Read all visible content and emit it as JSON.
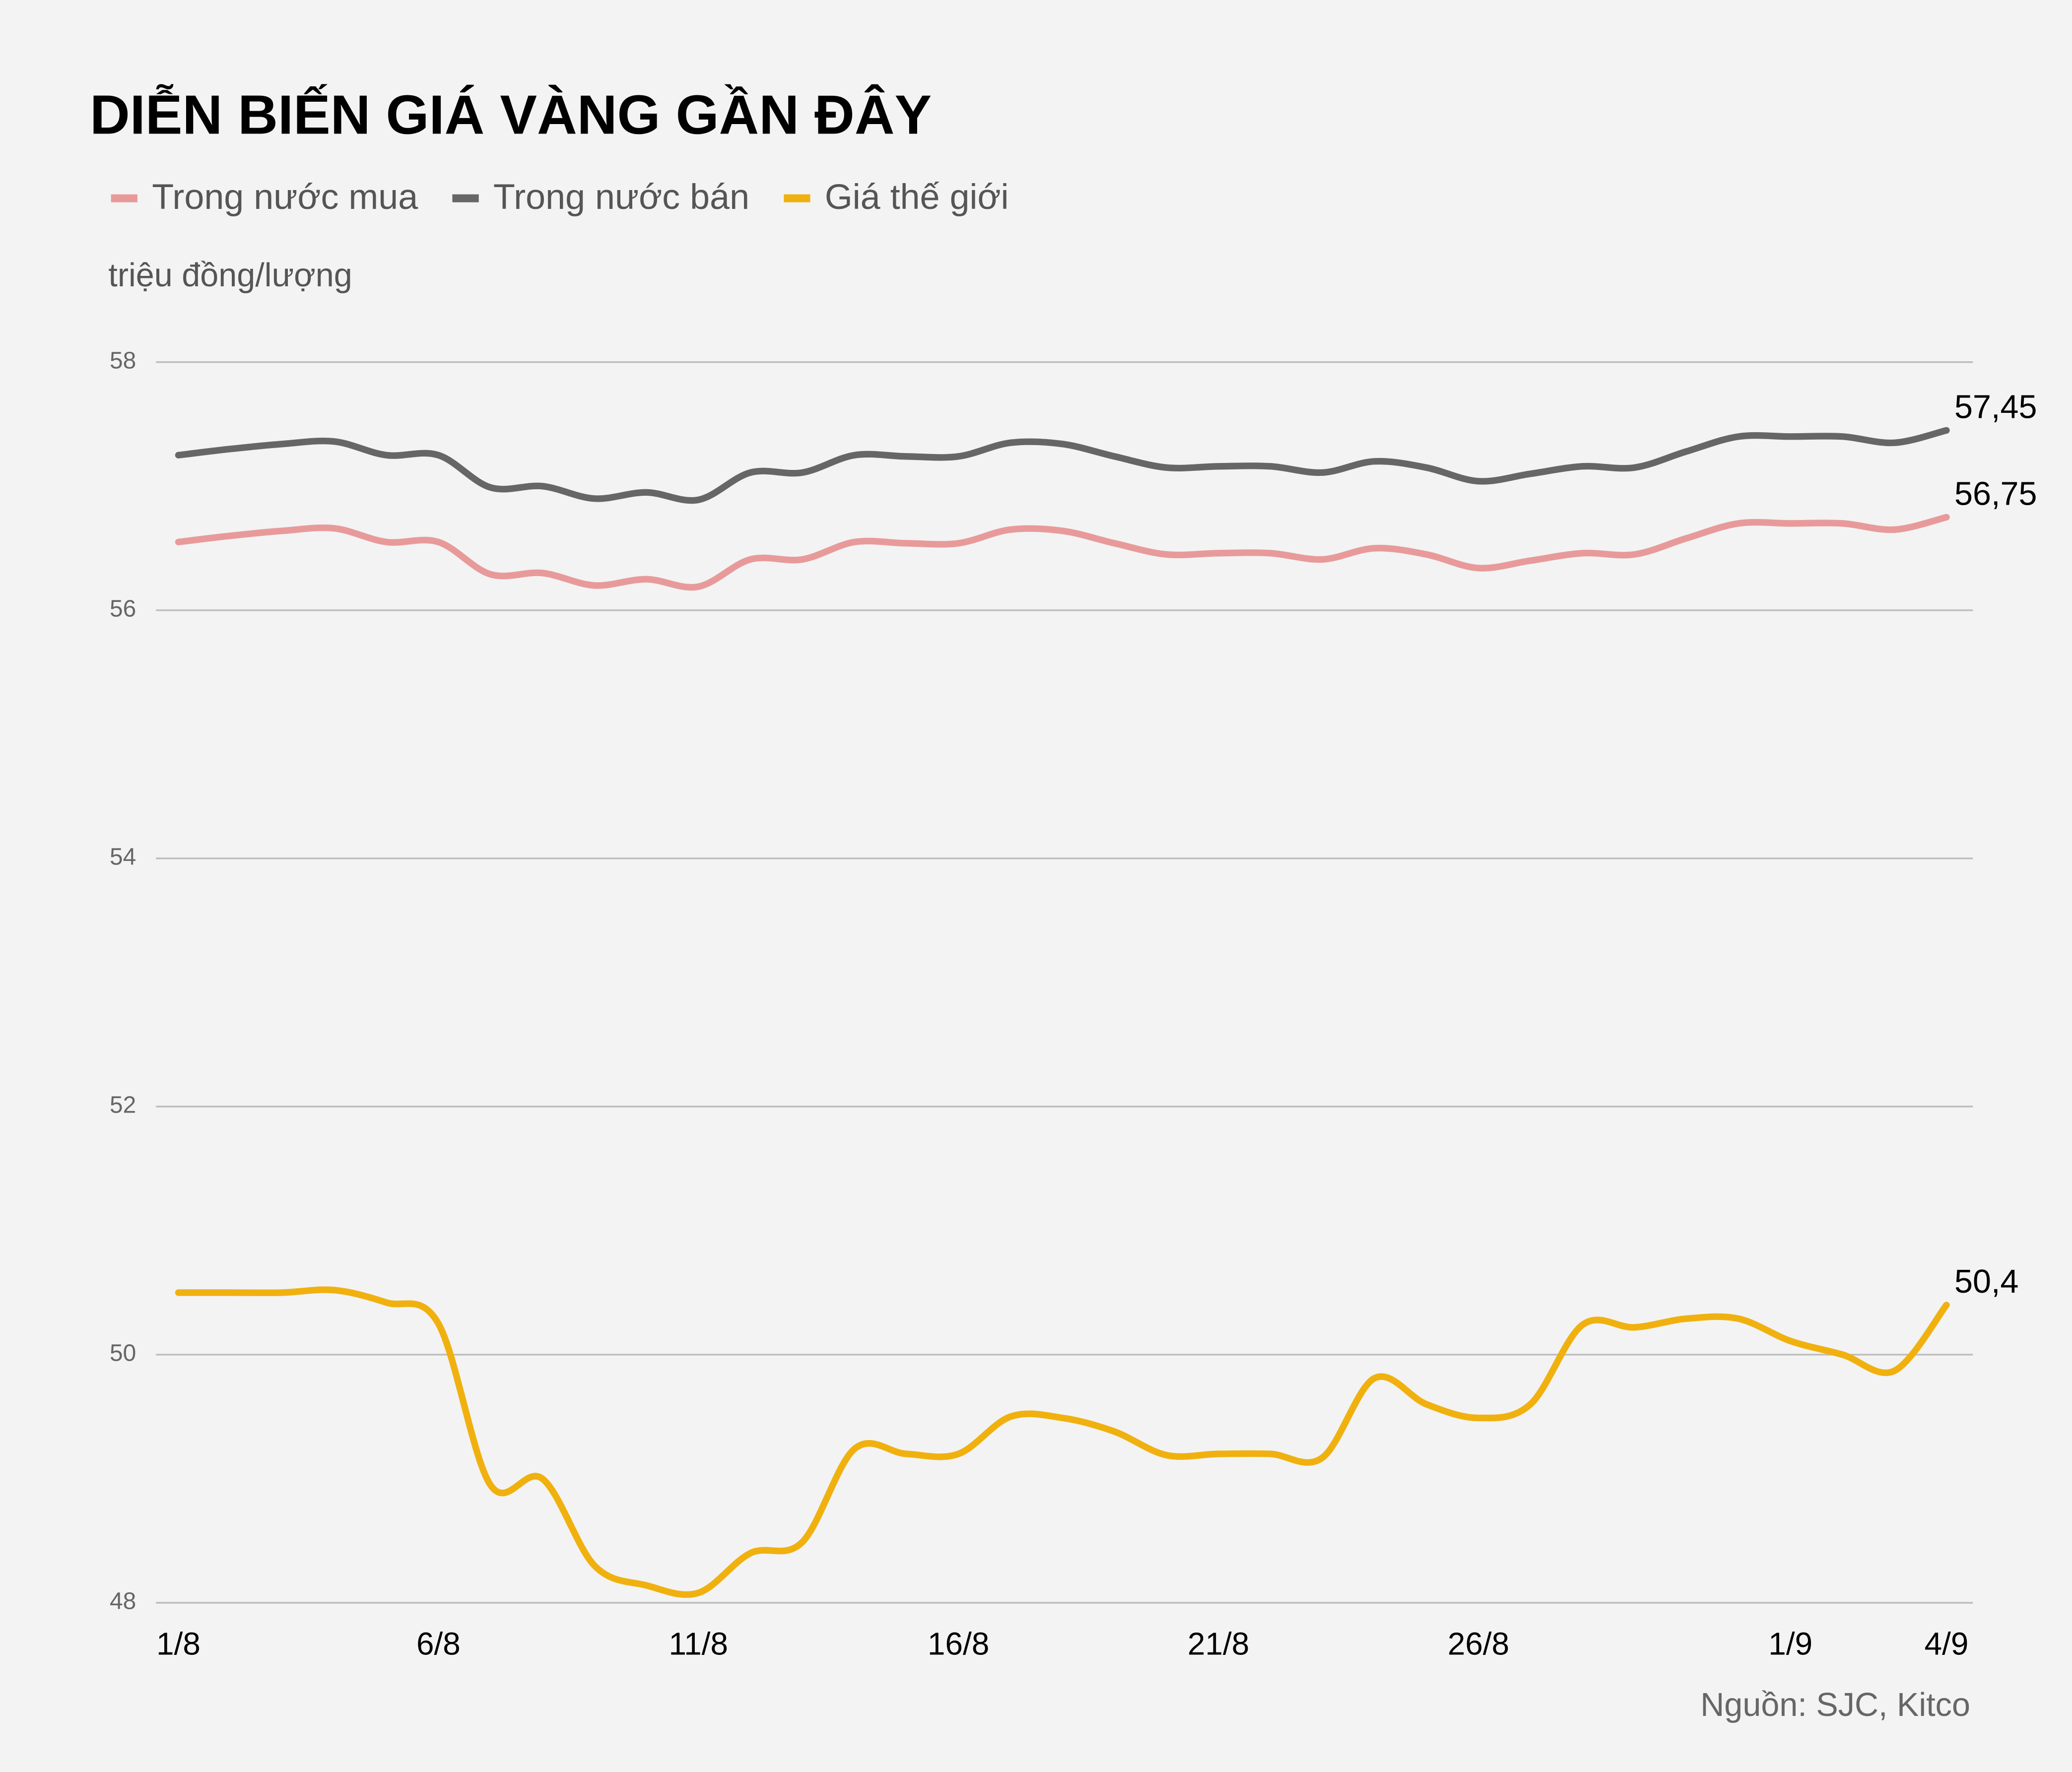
{
  "chart_data": {
    "type": "line",
    "title": "DIỄN BIẾN GIÁ VÀNG GẦN ĐÂY",
    "y_label": "triệu đồng/lượng",
    "source": "Nguồn: SJC, Kitco",
    "categories": [
      "1/8",
      null,
      null,
      null,
      null,
      "6/8",
      null,
      null,
      null,
      null,
      "11/8",
      null,
      null,
      null,
      null,
      "16/8",
      null,
      null,
      null,
      null,
      "21/8",
      null,
      null,
      null,
      null,
      "26/8",
      null,
      null,
      null,
      null,
      null,
      "1/9",
      null,
      null,
      "4/9"
    ],
    "ylim": [
      48,
      58
    ],
    "yticks": [
      48,
      50,
      52,
      54,
      56,
      58
    ],
    "grid": true,
    "series": [
      {
        "name": "Trong nước mua",
        "color": "#e89a9a",
        "values": [
          56.55,
          56.6,
          56.64,
          56.66,
          56.55,
          56.55,
          56.29,
          56.3,
          56.2,
          56.25,
          56.19,
          56.41,
          56.41,
          56.55,
          56.54,
          56.54,
          56.65,
          56.64,
          56.54,
          56.45,
          56.46,
          56.46,
          56.41,
          56.5,
          56.45,
          56.34,
          56.4,
          56.46,
          56.45,
          56.58,
          56.7,
          56.7,
          56.7,
          56.65,
          56.75
        ],
        "value_labels": [
          null,
          null,
          null,
          null,
          null,
          null,
          null,
          null,
          null,
          null,
          null,
          null,
          null,
          null,
          null,
          null,
          null,
          null,
          null,
          null,
          null,
          null,
          null,
          null,
          null,
          null,
          null,
          null,
          null,
          null,
          null,
          null,
          null,
          null,
          "56,75"
        ]
      },
      {
        "name": "Trong nước bán",
        "color": "#666666",
        "values": [
          57.25,
          57.3,
          57.34,
          57.36,
          57.25,
          57.25,
          56.99,
          57.0,
          56.9,
          56.95,
          56.89,
          57.11,
          57.11,
          57.25,
          57.24,
          57.24,
          57.35,
          57.34,
          57.24,
          57.15,
          57.16,
          57.16,
          57.11,
          57.2,
          57.15,
          57.04,
          57.1,
          57.16,
          57.15,
          57.28,
          57.4,
          57.4,
          57.4,
          57.35,
          57.45
        ],
        "value_labels": [
          null,
          null,
          null,
          null,
          null,
          null,
          null,
          null,
          null,
          null,
          null,
          null,
          null,
          null,
          null,
          null,
          null,
          null,
          null,
          null,
          null,
          null,
          null,
          null,
          null,
          null,
          null,
          null,
          null,
          null,
          null,
          null,
          null,
          null,
          "57,45"
        ]
      },
      {
        "name": "Giá thế giới",
        "color": "#f0b10f",
        "values": [
          50.5,
          50.5,
          50.5,
          50.52,
          50.42,
          50.25,
          48.95,
          49.0,
          48.3,
          48.14,
          48.08,
          48.4,
          48.49,
          49.24,
          49.2,
          49.2,
          49.5,
          49.49,
          49.38,
          49.19,
          49.2,
          49.2,
          49.17,
          49.81,
          49.6,
          49.49,
          49.6,
          50.24,
          50.22,
          50.29,
          50.29,
          50.11,
          50.0,
          49.87,
          50.4
        ],
        "value_labels": [
          null,
          null,
          null,
          null,
          null,
          null,
          null,
          null,
          null,
          null,
          null,
          null,
          null,
          null,
          null,
          null,
          null,
          null,
          null,
          null,
          null,
          null,
          null,
          null,
          null,
          null,
          null,
          null,
          null,
          null,
          null,
          null,
          null,
          null,
          "50,4"
        ]
      }
    ]
  }
}
